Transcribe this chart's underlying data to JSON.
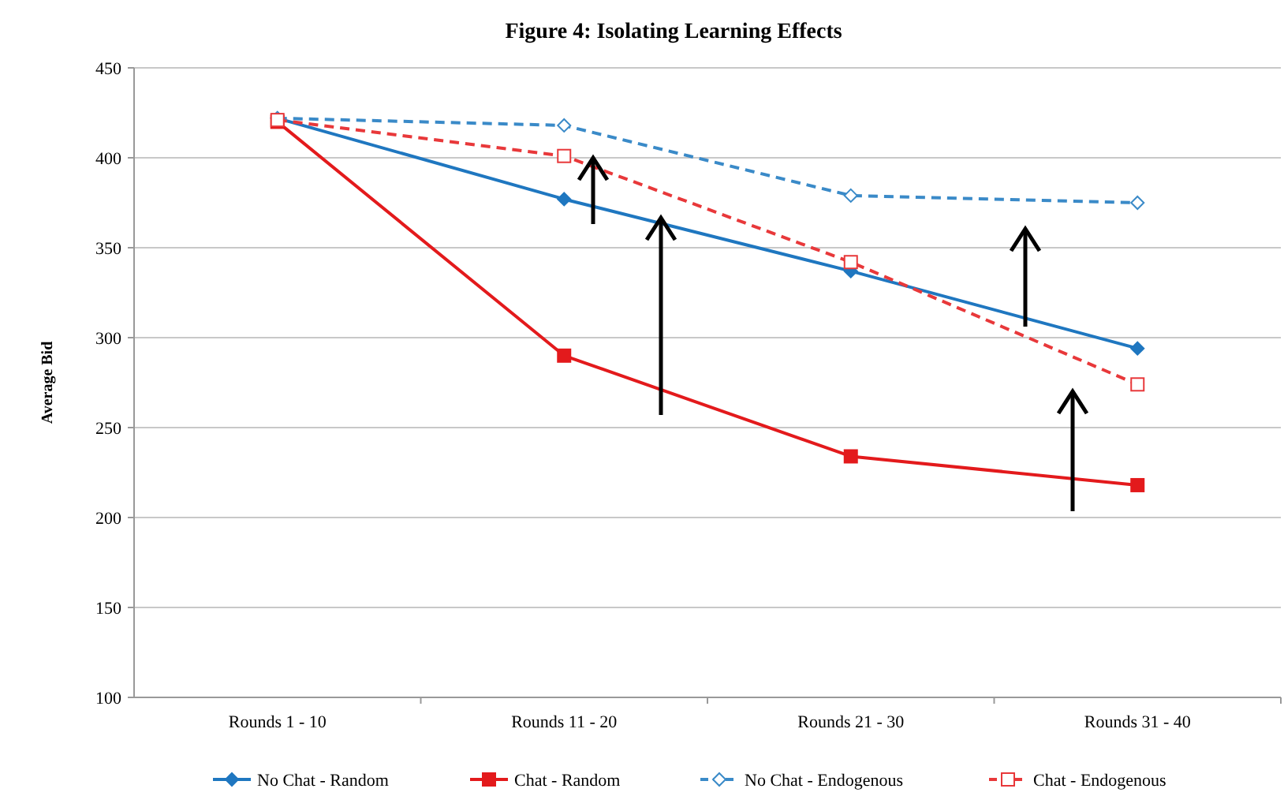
{
  "chart_data": {
    "type": "line",
    "title": "Figure 4: Isolating Learning Effects",
    "ylabel": "Average Bid",
    "categories": [
      "Rounds 1 - 10",
      "Rounds 11 - 20",
      "Rounds 21 - 30",
      "Rounds 31 - 40"
    ],
    "series": [
      {
        "name": "No Chat - Random",
        "color": "#1f77c0",
        "values": [
          422,
          377,
          337,
          294
        ],
        "marker": "diamond",
        "line_style": "solid"
      },
      {
        "name": "Chat - Random",
        "color": "#e31a1c",
        "values": [
          420,
          290,
          234,
          218
        ],
        "marker": "square",
        "line_style": "solid"
      },
      {
        "name": "No Chat - Endogenous",
        "color": "#3a8ac8",
        "values": [
          422,
          418,
          379,
          375
        ],
        "marker": "diamond",
        "line_style": "dashed"
      },
      {
        "name": "Chat - Endogenous",
        "color": "#e8383a",
        "values": [
          421,
          401,
          342,
          274
        ],
        "marker": "square",
        "line_style": "dashed"
      }
    ],
    "ylim": [
      100,
      450
    ],
    "yticks": [
      100,
      150,
      200,
      250,
      300,
      350,
      400,
      450
    ],
    "grid": "y",
    "legend": "bottom"
  }
}
